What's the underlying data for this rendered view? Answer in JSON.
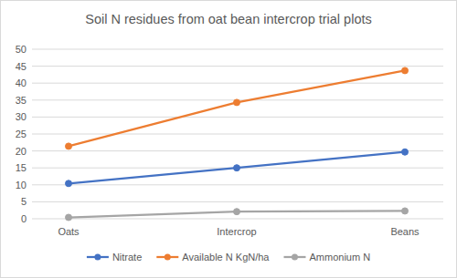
{
  "chart_data": {
    "type": "line",
    "title": "Soil N residues from oat bean intercrop trial plots",
    "categories": [
      "Oats",
      "Intercrop",
      "Beans"
    ],
    "series": [
      {
        "name": "Nitrate",
        "color": "#4472c4",
        "values": [
          10.4,
          15.0,
          19.7
        ],
        "marker": "circle",
        "line_style": "solid"
      },
      {
        "name": "Available N KgN/ha",
        "color": "#ed7d31",
        "values": [
          21.4,
          34.3,
          43.7
        ],
        "marker": "circle",
        "line_style": "solid"
      },
      {
        "name": "Ammonium N",
        "color": "#a5a5a5",
        "values": [
          0.4,
          2.1,
          2.3
        ],
        "marker": "circle",
        "line_style": "solid"
      }
    ],
    "ylim": [
      0,
      50
    ],
    "yticks": [
      0,
      5,
      10,
      15,
      20,
      25,
      30,
      35,
      40,
      45,
      50
    ],
    "grid": true,
    "legend": "bottom"
  }
}
